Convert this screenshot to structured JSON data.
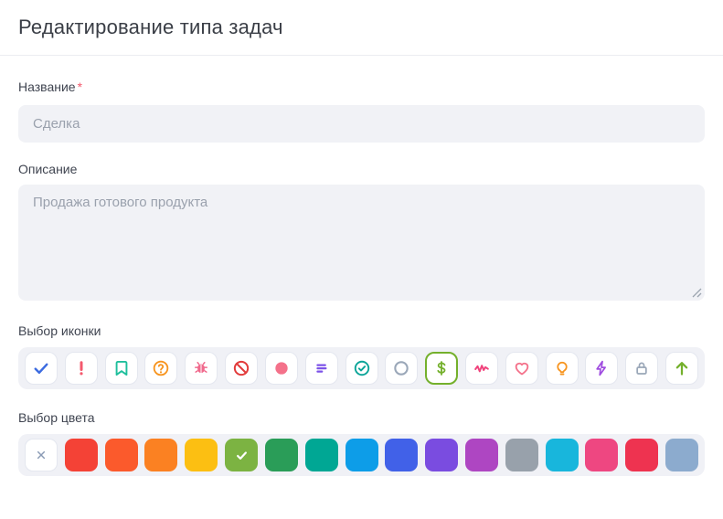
{
  "header": {
    "title": "Редактирование типа задач"
  },
  "form": {
    "name_field": {
      "label": "Название",
      "required_mark": "*",
      "placeholder": "Сделка",
      "value": ""
    },
    "description_field": {
      "label": "Описание",
      "placeholder": "Продажа готового продукта",
      "value": ""
    },
    "icon_picker": {
      "label": "Выбор иконки",
      "selected": "dollar",
      "selected_border_color": "#74b02c",
      "icons": [
        {
          "name": "check",
          "color": "#3d6ce0"
        },
        {
          "name": "exclamation",
          "color": "#f4596d"
        },
        {
          "name": "bookmark",
          "color": "#1fbf9c"
        },
        {
          "name": "help-circle",
          "color": "#f7941e"
        },
        {
          "name": "bug",
          "color": "#f0698c"
        },
        {
          "name": "ban",
          "color": "#e23b3b"
        },
        {
          "name": "circle-filled",
          "color": "#f4718a"
        },
        {
          "name": "bars",
          "color": "#7c52e8"
        },
        {
          "name": "circle-check",
          "color": "#0ba498"
        },
        {
          "name": "circle-outline",
          "color": "#9aa7b8"
        },
        {
          "name": "dollar",
          "color": "#74b02c"
        },
        {
          "name": "activity",
          "color": "#f0437c"
        },
        {
          "name": "heart",
          "color": "#f4718a"
        },
        {
          "name": "bulb",
          "color": "#f7941e"
        },
        {
          "name": "zap",
          "color": "#a04de0"
        },
        {
          "name": "lock",
          "color": "#9aa7b8"
        },
        {
          "name": "arrow-up",
          "color": "#74b02c"
        }
      ]
    },
    "color_picker": {
      "label": "Выбор цвета",
      "selected_index": 5,
      "clear_icon_color": "#8a9bb5",
      "colors": [
        "none",
        "#f44236",
        "#fb5a2c",
        "#fb8122",
        "#fcbf12",
        "#7cb342",
        "#2a9d58",
        "#00a794",
        "#0d9de8",
        "#4161e8",
        "#7a4ce0",
        "#ae46c2",
        "#98a1ab",
        "#18b6dc",
        "#ee4781",
        "#ee3350",
        "#8cabce"
      ]
    }
  }
}
